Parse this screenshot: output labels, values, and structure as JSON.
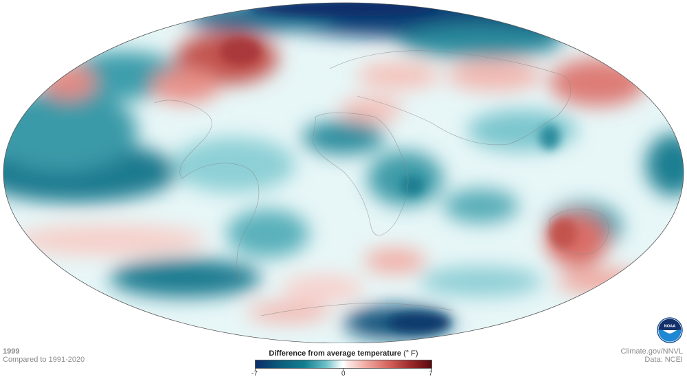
{
  "map": {
    "year": "1999",
    "comparison": "Compared to 1991-2020",
    "projection": "Mollweide"
  },
  "legend": {
    "title": "Difference from average temperature",
    "unit": "(° F)",
    "min_label": "-7",
    "mid_label": "0",
    "max_label": "7",
    "colors": {
      "cold_extreme": "#0b2d6b",
      "cold": "#137f91",
      "neutral": "#ffffff",
      "warm": "#d4625c",
      "warm_extreme": "#5a0a0f"
    }
  },
  "credits": {
    "site": "Climate.gov/NNVL",
    "data": "Data: NCEI"
  },
  "logo": {
    "text": "NOAA",
    "icon": "noaa-logo-icon"
  }
}
